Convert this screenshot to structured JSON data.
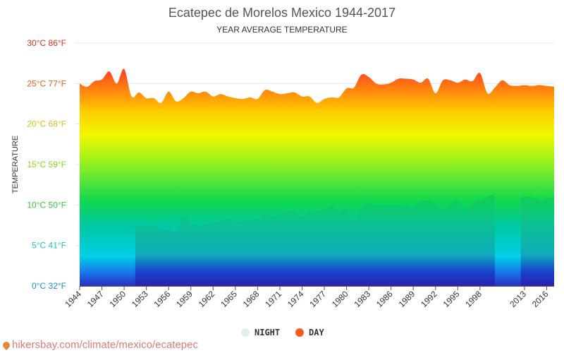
{
  "chart_data": {
    "type": "area",
    "title": "Ecatepec de Morelos Mexico 1944-2017",
    "subtitle": "YEAR AVERAGE TEMPERATURE",
    "ylabel": "TEMPERATURE",
    "ylim": [
      0,
      30
    ],
    "y_ticks": [
      {
        "value": 0,
        "label": "0°C 32°F",
        "color": "#1a8fd6"
      },
      {
        "value": 5,
        "label": "5°C 41°F",
        "color": "#1fc4c4"
      },
      {
        "value": 10,
        "label": "10°C 50°F",
        "color": "#3cc43c"
      },
      {
        "value": 15,
        "label": "15°C 59°F",
        "color": "#8cd61a"
      },
      {
        "value": 20,
        "label": "20°C 68°F",
        "color": "#d6c21a"
      },
      {
        "value": 25,
        "label": "25°C 77°F",
        "color": "#e0641a"
      },
      {
        "value": 30,
        "label": "30°C 86°F",
        "color": "#e0301a"
      }
    ],
    "x_ticks": [
      "1944",
      "1947",
      "1950",
      "1953",
      "1956",
      "1959",
      "1962",
      "1965",
      "1968",
      "1971",
      "1974",
      "1977",
      "1980",
      "1983",
      "1986",
      "1989",
      "1992",
      "1995",
      "1998",
      "2013",
      "2016"
    ],
    "x": [
      1944,
      1945,
      1946,
      1947,
      1948,
      1949,
      1950,
      1951,
      1952,
      1953,
      1954,
      1955,
      1956,
      1957,
      1958,
      1959,
      1960,
      1961,
      1962,
      1963,
      1964,
      1965,
      1966,
      1967,
      1968,
      1969,
      1970,
      1971,
      1972,
      1973,
      1974,
      1975,
      1976,
      1977,
      1978,
      1979,
      1980,
      1981,
      1982,
      1983,
      1984,
      1985,
      1986,
      1987,
      1988,
      1989,
      1990,
      1991,
      1992,
      1993,
      1994,
      1995,
      1996,
      1997,
      1998,
      1999,
      2000,
      2001,
      2002,
      2012,
      2013,
      2014,
      2015,
      2016,
      2017
    ],
    "series": [
      {
        "name": "DAY",
        "color": "#ff5a1f",
        "values": [
          25.0,
          24.6,
          25.3,
          25.5,
          26.5,
          25.0,
          26.8,
          23.4,
          23.9,
          23.2,
          23.2,
          22.6,
          24.0,
          22.8,
          23.2,
          24.0,
          23.8,
          24.0,
          23.4,
          23.7,
          23.4,
          23.2,
          23.1,
          23.3,
          23.1,
          24.2,
          24.0,
          23.7,
          23.8,
          23.9,
          23.4,
          23.4,
          22.6,
          23.1,
          23.3,
          23.3,
          24.4,
          24.5,
          26.1,
          25.8,
          25.0,
          24.9,
          25.1,
          25.6,
          25.6,
          25.5,
          25.1,
          25.6,
          23.8,
          25.4,
          25.4,
          25.1,
          25.5,
          25.3,
          26.3,
          23.8,
          24.5,
          25.4,
          24.8,
          24.7,
          24.8,
          24.7,
          24.8,
          24.7,
          24.6
        ]
      },
      {
        "name": "NIGHT",
        "color": "#e0eef0",
        "values": [
          null,
          null,
          null,
          null,
          null,
          null,
          null,
          null,
          7.4,
          7.4,
          7.4,
          6.9,
          6.9,
          6.8,
          8.6,
          7.8,
          7.5,
          7.6,
          7.8,
          8.0,
          8.4,
          7.9,
          8.1,
          8.2,
          8.3,
          8.9,
          8.6,
          8.9,
          9.2,
          9.3,
          8.5,
          9.1,
          9.2,
          9.4,
          9.8,
          9.3,
          9.5,
          8.0,
          9.8,
          10.2,
          10.1,
          9.9,
          10.0,
          10.0,
          10.1,
          9.9,
          10.4,
          10.6,
          10.1,
          9.5,
          10.3,
          10.5,
          9.6,
          10.2,
          10.6,
          11.0,
          11.4,
          null,
          null,
          null,
          11.0,
          11.0,
          10.6,
          10.8,
          11.0
        ]
      }
    ],
    "legend": [
      {
        "name": "NIGHT",
        "color": "#e0eef0"
      },
      {
        "name": "DAY",
        "color": "#ff5a1f"
      }
    ],
    "legend_position": "bottom",
    "grid": true
  },
  "watermark": {
    "icon": "map-pin-icon",
    "text": "hikersbay.com/climate/mexico/ecatepec"
  }
}
